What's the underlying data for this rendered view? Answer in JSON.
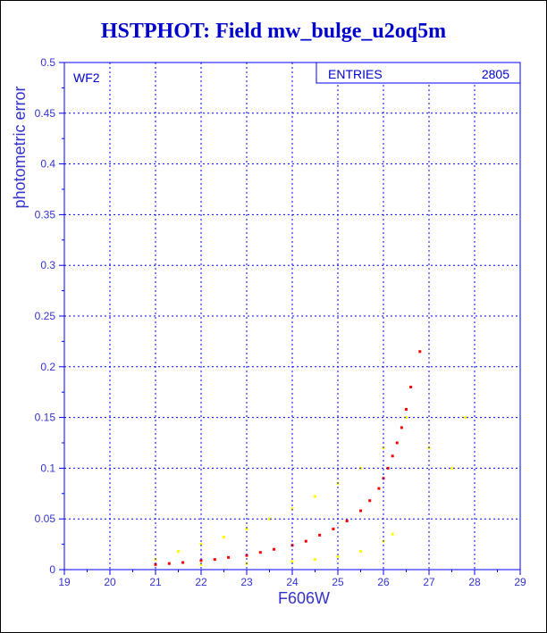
{
  "chart_data": {
    "type": "scatter",
    "title": "HSTPHOT: Field mw_bulge_u2oq5m",
    "xlabel": "F606W",
    "ylabel": "photometric error",
    "xlim": [
      19,
      29
    ],
    "ylim": [
      0,
      0.5
    ],
    "x_ticks": [
      "19",
      "20",
      "21",
      "22",
      "23",
      "24",
      "25",
      "26",
      "27",
      "28",
      "29"
    ],
    "y_ticks": [
      "0",
      "0.05",
      "0.1",
      "0.15",
      "0.2",
      "0.25",
      "0.3",
      "0.35",
      "0.4",
      "0.45",
      "0.5"
    ],
    "grid": true,
    "annotation": "WF2",
    "stats_box": {
      "label": "ENTRIES",
      "value": "2805"
    },
    "series": [
      {
        "color": "#ff0000",
        "x": [
          21.0,
          21.3,
          21.6,
          22.0,
          22.3,
          22.6,
          23.0,
          23.3,
          23.6,
          24.0,
          24.3,
          24.6,
          24.9,
          25.2,
          25.5,
          25.7,
          25.9,
          26.0,
          26.1,
          26.2,
          26.3,
          26.4,
          26.5,
          26.6,
          26.8
        ],
        "values": [
          0.005,
          0.006,
          0.007,
          0.009,
          0.01,
          0.012,
          0.014,
          0.017,
          0.02,
          0.024,
          0.028,
          0.034,
          0.04,
          0.048,
          0.058,
          0.068,
          0.08,
          0.09,
          0.1,
          0.112,
          0.125,
          0.14,
          0.158,
          0.18,
          0.215
        ]
      },
      {
        "color": "#ffff00",
        "x": [
          21.0,
          21.5,
          22.0,
          22.5,
          23.0,
          23.5,
          24.0,
          24.5,
          25.0,
          25.5,
          26.0,
          26.5,
          27.0,
          27.5,
          27.8
        ],
        "values": [
          0.01,
          0.018,
          0.025,
          0.032,
          0.04,
          0.05,
          0.06,
          0.072,
          0.085,
          0.1,
          0.12,
          0.15,
          0.12,
          0.1,
          0.15
        ]
      },
      {
        "color": "#ffff00",
        "x": [
          22.0,
          23.0,
          24.0,
          24.5,
          25.0,
          25.5,
          26.0,
          26.2
        ],
        "values": [
          0.005,
          0.006,
          0.008,
          0.01,
          0.013,
          0.018,
          0.028,
          0.035
        ]
      }
    ]
  }
}
